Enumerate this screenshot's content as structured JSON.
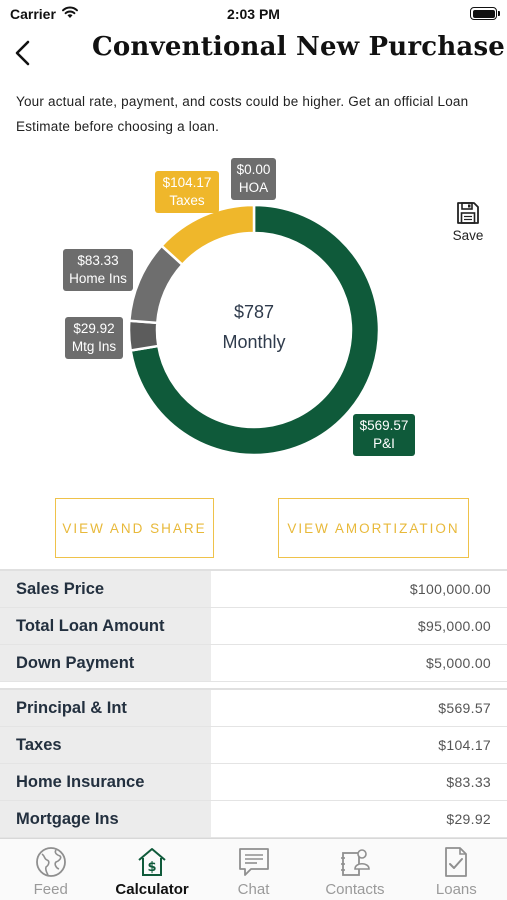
{
  "status_bar": {
    "carrier": "Carrier",
    "time": "2:03 PM"
  },
  "header": {
    "title": "Conventional New Purchase"
  },
  "disclaimer": "Your actual rate, payment, and costs could be higher. Get an official Loan Estimate before choosing a loan.",
  "chart_data": {
    "type": "pie",
    "center_amount": "$787",
    "center_label": "Monthly",
    "slices": [
      {
        "label": "P&I",
        "value": 569.57,
        "display": "$569.57",
        "color": "#0f5a3a"
      },
      {
        "label": "Mtg Ins",
        "value": 29.92,
        "display": "$29.92",
        "color": "#5c5c5c"
      },
      {
        "label": "Home Ins",
        "value": 83.33,
        "display": "$83.33",
        "color": "#6e6e6e"
      },
      {
        "label": "Taxes",
        "value": 104.17,
        "display": "$104.17",
        "color": "#efb72b"
      },
      {
        "label": "HOA",
        "value": 0.0,
        "display": "$0.00",
        "color": "#6d6d6d"
      }
    ]
  },
  "save": {
    "label": "Save"
  },
  "actions": {
    "view_share": "VIEW AND SHARE",
    "view_amortization": "VIEW AMORTIZATION"
  },
  "summary_rows": [
    {
      "label": "Sales Price",
      "value": "$100,000.00"
    },
    {
      "label": "Total Loan Amount",
      "value": "$95,000.00"
    },
    {
      "label": "Down Payment",
      "value": "$5,000.00"
    }
  ],
  "payment_rows": [
    {
      "label": "Principal & Int",
      "value": "$569.57"
    },
    {
      "label": "Taxes",
      "value": "$104.17"
    },
    {
      "label": "Home Insurance",
      "value": "$83.33"
    },
    {
      "label": "Mortgage Ins",
      "value": "$29.92"
    }
  ],
  "tabs": [
    {
      "label": "Feed",
      "icon": "globe-icon"
    },
    {
      "label": "Calculator",
      "icon": "house-dollar-icon"
    },
    {
      "label": "Chat",
      "icon": "chat-bubble-icon"
    },
    {
      "label": "Contacts",
      "icon": "contacts-icon"
    },
    {
      "label": "Loans",
      "icon": "document-check-icon"
    }
  ]
}
